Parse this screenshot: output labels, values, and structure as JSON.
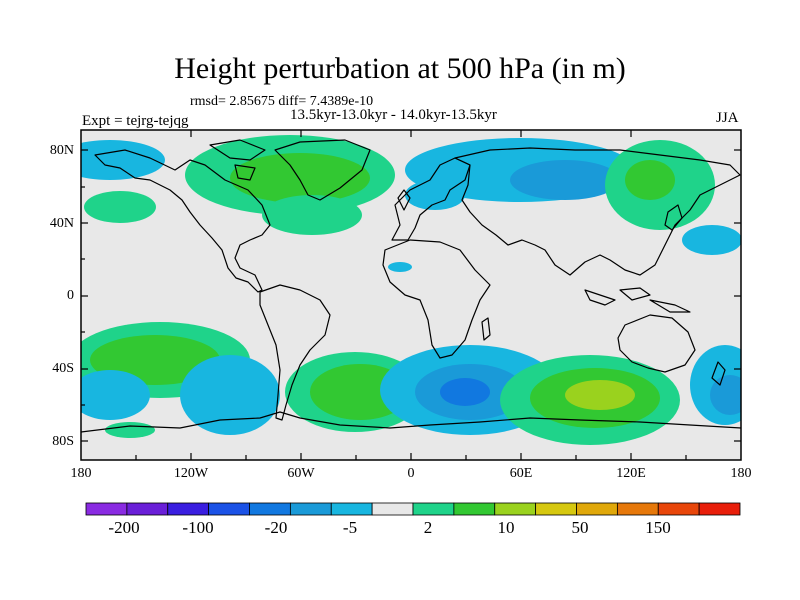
{
  "title": "Height perturbation at 500 hPa (in m)",
  "rmsd_text": "rmsd= 2.85675 diff= 7.4389e-10",
  "period_text": "13.5kyr-13.0kyr - 14.0kyr-13.5kyr",
  "experiment_text": "Expt = tejrg-tejqg",
  "season": "JJA",
  "y_ticks": [
    "80N",
    "40N",
    "0",
    "40S",
    "80S"
  ],
  "x_ticks": [
    "180",
    "120W",
    "60W",
    "0",
    "60E",
    "120E",
    "180"
  ],
  "colorbar": {
    "labels": [
      "-200",
      "-100",
      "-20",
      "-5",
      "2",
      "10",
      "50",
      "150"
    ],
    "colors": [
      "#8a2be2",
      "#6a1fd8",
      "#3a1ee0",
      "#1b52e6",
      "#1178e0",
      "#1a9ad8",
      "#18b6e0",
      "#e8e8e8",
      "#1fd38a",
      "#32c832",
      "#9ad21e",
      "#d6c810",
      "#e0a80a",
      "#e6780a",
      "#e8460a",
      "#e81e0a"
    ]
  },
  "map_colors": {
    "background": "#e8e8e8",
    "light_blue": "#18b6e0",
    "mid_blue": "#1a9ad8",
    "dark_blue": "#1178e0",
    "light_green": "#1fd38a",
    "green": "#32c832",
    "yellow_green": "#9ad21e"
  }
}
